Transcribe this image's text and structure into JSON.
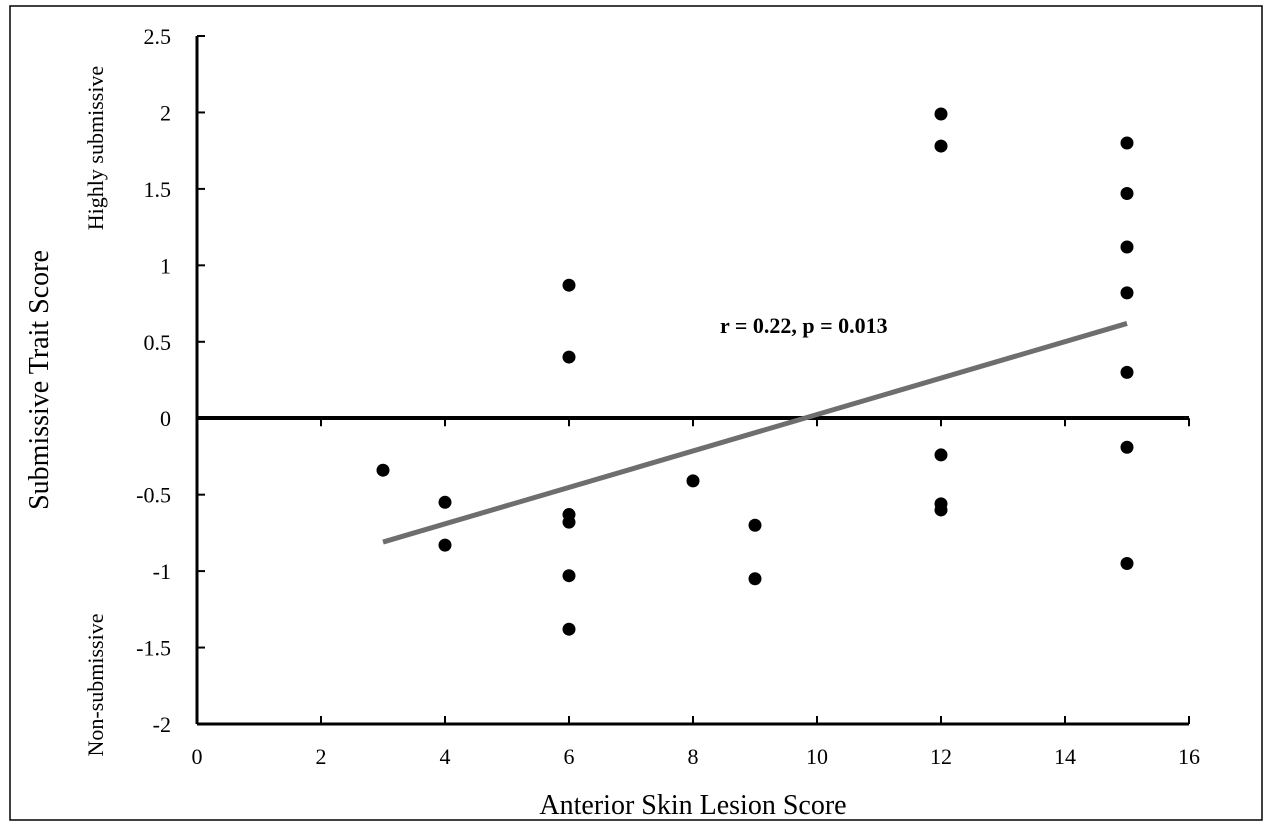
{
  "chart_data": {
    "type": "scatter",
    "title": "",
    "xlabel": "Anterior Skin Lesion Score",
    "ylabel": "Submissive Trait Score",
    "ylabel_top_note": "Highly submissive",
    "ylabel_bottom_note": "Non-submissive",
    "annotation": "r = 0.22, p = 0.013",
    "xlim": [
      0,
      16
    ],
    "ylim": [
      -2,
      2.5
    ],
    "xticks": [
      "0",
      "2",
      "4",
      "6",
      "8",
      "10",
      "12",
      "14",
      "16"
    ],
    "yticks": [
      "2.5",
      "2",
      "1.5",
      "1",
      "0.5",
      "0",
      "-0.5",
      "-1",
      "-1.5",
      "-2"
    ],
    "xtick_values": [
      0,
      2,
      4,
      6,
      8,
      10,
      12,
      14,
      16
    ],
    "ytick_values": [
      2.5,
      2,
      1.5,
      1,
      0.5,
      0,
      -0.5,
      -1,
      -1.5,
      -2
    ],
    "grid": false,
    "legend": "none",
    "marker_color": "#000000",
    "trendline_color": "#6e6e6e",
    "zero_line": true,
    "points": [
      {
        "x": 3,
        "y": -0.34
      },
      {
        "x": 4,
        "y": -0.55
      },
      {
        "x": 4,
        "y": -0.83
      },
      {
        "x": 6,
        "y": 0.87
      },
      {
        "x": 6,
        "y": 0.4
      },
      {
        "x": 6,
        "y": -0.63
      },
      {
        "x": 6,
        "y": -0.68
      },
      {
        "x": 6,
        "y": -1.03
      },
      {
        "x": 6,
        "y": -1.38
      },
      {
        "x": 8,
        "y": -0.41
      },
      {
        "x": 9,
        "y": -0.7
      },
      {
        "x": 9,
        "y": -1.05
      },
      {
        "x": 12,
        "y": 1.99
      },
      {
        "x": 12,
        "y": 1.78
      },
      {
        "x": 12,
        "y": -0.24
      },
      {
        "x": 12,
        "y": -0.56
      },
      {
        "x": 12,
        "y": -0.6
      },
      {
        "x": 15,
        "y": 1.8
      },
      {
        "x": 15,
        "y": 1.47
      },
      {
        "x": 15,
        "y": 1.12
      },
      {
        "x": 15,
        "y": 0.82
      },
      {
        "x": 15,
        "y": 0.3
      },
      {
        "x": 15,
        "y": -0.19
      },
      {
        "x": 15,
        "y": -0.95
      }
    ],
    "trendline": {
      "x": [
        3,
        15
      ],
      "y": [
        -0.81,
        0.62
      ]
    }
  }
}
